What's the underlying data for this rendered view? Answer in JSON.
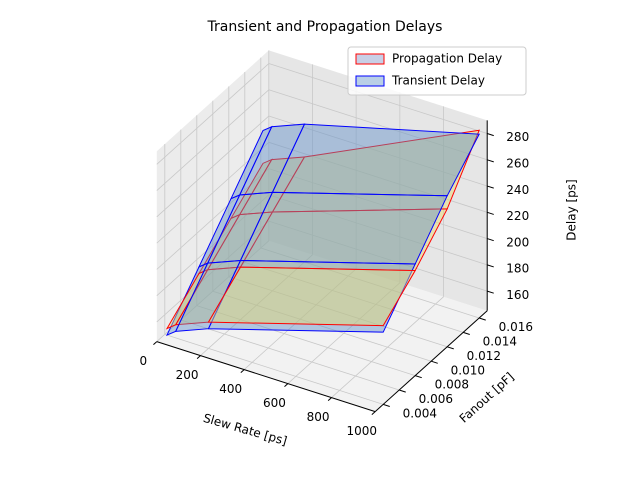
{
  "chart_data": {
    "type": "surface3d",
    "title": "Transient and Propagation Delays",
    "xlabel": "Slew Rate [ps]",
    "ylabel": "Fanout [pF]",
    "zlabel": "Delay [ps]",
    "x": [
      10,
      50,
      200,
      1000
    ],
    "y": [
      0.004,
      0.008,
      0.012,
      0.016
    ],
    "series": [
      {
        "name": "Propagation Delay",
        "color": "#ff0000",
        "fill": "#e8dc6a",
        "legend_fill": "#c8cfe6",
        "z": [
          [
            150,
            155,
            165,
            205
          ],
          [
            170,
            175,
            185,
            225
          ],
          [
            190,
            195,
            205,
            250
          ],
          [
            210,
            215,
            225,
            288
          ]
        ]
      },
      {
        "name": "Transient Delay",
        "color": "#0000ff",
        "fill": "#5f8fc7",
        "legend_fill": "#b9cfe6",
        "z": [
          [
            145,
            150,
            160,
            200
          ],
          [
            175,
            180,
            190,
            230
          ],
          [
            205,
            210,
            220,
            260
          ],
          [
            235,
            240,
            250,
            285
          ]
        ]
      }
    ],
    "xlim": [
      0,
      1000
    ],
    "ylim": [
      0.003,
      0.017
    ],
    "zlim": [
      145,
      290
    ],
    "xticks": [
      0,
      200,
      400,
      600,
      800,
      1000
    ],
    "yticks": [
      0.004,
      0.006,
      0.008,
      {
        "value": 0.01,
        "label": "0.010"
      },
      0.012,
      0.014,
      0.016
    ],
    "zticks": [
      160,
      180,
      200,
      220,
      240,
      260,
      280
    ],
    "grid": true,
    "legend": "upper right"
  }
}
